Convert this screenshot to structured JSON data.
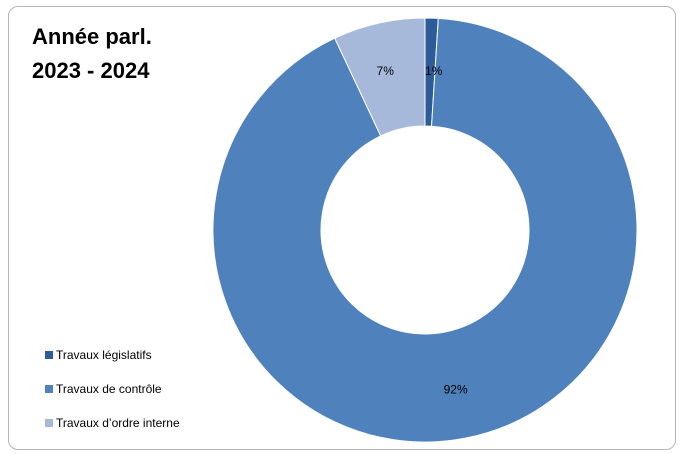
{
  "chart_data": {
    "type": "pie",
    "donut": true,
    "title_lines": [
      "Année parl.",
      "2023 - 2024"
    ],
    "categories": [
      "Travaux législatifs",
      "Travaux de contrôle",
      "Travaux d’ordre interne"
    ],
    "values": [
      1,
      92,
      7
    ],
    "data_labels": [
      "1%",
      "92%",
      "7%"
    ],
    "colors": [
      "#2E5C99",
      "#4F81BD",
      "#A6B9DB"
    ],
    "legend_position": "bottom-left"
  }
}
